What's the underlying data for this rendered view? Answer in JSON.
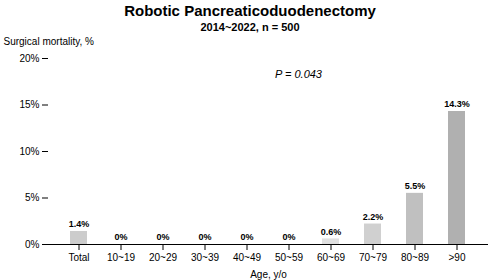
{
  "chart_data": {
    "type": "bar",
    "title": "Robotic Pancreaticoduodenectomy",
    "subtitle": "2014~2022, n = 500",
    "xlabel": "Age, y/o",
    "ylabel": "Surgical mortality, %",
    "annotation": "P = 0.043",
    "categories": [
      "Total",
      "10~19",
      "20~29",
      "30~39",
      "40~49",
      "50~59",
      "60~69",
      "70~79",
      "80~89",
      ">90"
    ],
    "values": [
      1.4,
      0.001,
      0.001,
      0.001,
      0.001,
      0.001,
      0.6,
      2.2,
      5.5,
      14.3
    ],
    "value_labels": [
      "1.4%",
      "0%",
      "0%",
      "0%",
      "0%",
      "0%",
      "0.6%",
      "2.2%",
      "5.5%",
      "14.3%"
    ],
    "data_labels": true,
    "colors": [
      "#cccccc",
      "#ffffff",
      "#ffffff",
      "#ffffff",
      "#ffffff",
      "#ffffff",
      "#e0e0e0",
      "#d0d0d0",
      "#c0c0c0",
      "#b0b0b0"
    ],
    "ylim": [
      0,
      20
    ],
    "yticks": [
      {
        "value": 0,
        "label": "0%"
      },
      {
        "value": 5,
        "label": "5%"
      },
      {
        "value": 10,
        "label": "10%"
      },
      {
        "value": 15,
        "label": "15%"
      },
      {
        "value": 20,
        "label": "20%"
      }
    ],
    "grid": false
  }
}
